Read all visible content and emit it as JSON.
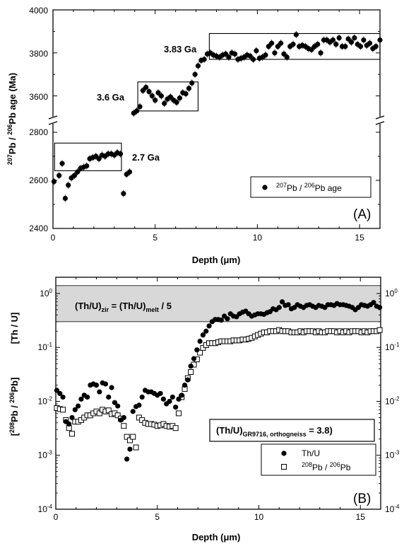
{
  "chart_data": [
    {
      "type": "scatter",
      "panel_label": "(A)",
      "xlabel": "Depth (μm)",
      "ylabel_parts": [
        "207",
        "Pb / ",
        "206",
        "Pb age (Ma)"
      ],
      "xlim": [
        0,
        16
      ],
      "ylim_lower": [
        2400,
        2800
      ],
      "ylim_upper": [
        3500,
        4000
      ],
      "x_ticks": [
        "0",
        "5",
        "10",
        "15"
      ],
      "y_ticks_lower": [
        "2400",
        "2600",
        "2800"
      ],
      "y_ticks_upper": [
        "3600",
        "3800",
        "4000"
      ],
      "axis_break": true,
      "annotations": [
        "3.83 Ga",
        "3.6 Ga",
        "2.7 Ga"
      ],
      "boxes": [
        {
          "x": [
            0.08,
            3.35
          ],
          "y": [
            2640,
            2755
          ]
        },
        {
          "x": [
            4.15,
            7.1
          ],
          "y": [
            3530,
            3665
          ]
        },
        {
          "x": [
            7.65,
            16.0
          ],
          "y": [
            3770,
            3890
          ]
        }
      ],
      "legend": {
        "position": "bottom-right",
        "label_parts": [
          "207",
          "Pb / ",
          "206",
          "Pb age"
        ]
      },
      "series": [
        {
          "marker": "filled-circle",
          "x": [
            0.05,
            0.3,
            0.45,
            0.6,
            0.75,
            0.9,
            1.05,
            1.2,
            1.35,
            1.5,
            1.65,
            1.8,
            1.95,
            2.1,
            2.25,
            2.4,
            2.55,
            2.7,
            2.85,
            3.0,
            3.15,
            3.3,
            3.45,
            3.6,
            3.75,
            3.95,
            4.1,
            4.25,
            4.4,
            4.55,
            4.7,
            4.85,
            5.0,
            5.15,
            5.3,
            5.45,
            5.6,
            5.75,
            5.9,
            6.05,
            6.2,
            6.35,
            6.5,
            6.65,
            6.8,
            6.95,
            7.1,
            7.25,
            7.4,
            7.55,
            7.7,
            7.85,
            8.0,
            8.15,
            8.3,
            8.45,
            8.6,
            8.75,
            8.9,
            9.05,
            9.2,
            9.35,
            9.5,
            9.65,
            9.8,
            9.95,
            10.1,
            10.25,
            10.4,
            10.55,
            10.7,
            10.85,
            11.0,
            11.15,
            11.3,
            11.45,
            11.6,
            11.75,
            11.9,
            12.05,
            12.2,
            12.35,
            12.5,
            12.65,
            12.8,
            12.95,
            13.1,
            13.25,
            13.4,
            13.55,
            13.7,
            13.85,
            14.0,
            14.15,
            14.3,
            14.45,
            14.6,
            14.75,
            14.9,
            15.05,
            15.2,
            15.35,
            15.5,
            15.65,
            15.8,
            16.0
          ],
          "y": [
            2595,
            2620,
            2670,
            2525,
            2580,
            2610,
            2620,
            2635,
            2650,
            2655,
            2660,
            2690,
            2695,
            2700,
            2690,
            2705,
            2700,
            2710,
            2710,
            2705,
            2715,
            2710,
            2545,
            2625,
            2635,
            3520,
            3530,
            3550,
            3625,
            3640,
            3620,
            3600,
            3580,
            3615,
            3600,
            3565,
            3585,
            3595,
            3580,
            3570,
            3590,
            3615,
            3610,
            3635,
            3660,
            3700,
            3740,
            3765,
            3770,
            3795,
            3800,
            3790,
            3785,
            3780,
            3790,
            3795,
            3780,
            3800,
            3795,
            3770,
            3775,
            3780,
            3790,
            3785,
            3770,
            3810,
            3775,
            3780,
            3790,
            3830,
            3845,
            3800,
            3830,
            3845,
            3795,
            3780,
            3830,
            3840,
            3885,
            3830,
            3835,
            3830,
            3820,
            3815,
            3830,
            3840,
            3800,
            3860,
            3860,
            3850,
            3860,
            3840,
            3870,
            3830,
            3830,
            3865,
            3850,
            3870,
            3840,
            3830,
            3860,
            3835,
            3845,
            3820,
            3830,
            3860
          ]
        }
      ]
    },
    {
      "type": "scatter",
      "panel_label": "(B)",
      "xlabel": "Depth (μm)",
      "ylabel_upper": "[Th / U]",
      "ylabel_lower_parts": [
        "[",
        "208",
        "Pb / ",
        "206",
        "Pb]"
      ],
      "xlim": [
        0,
        16
      ],
      "ylim": [
        0.0001,
        2
      ],
      "yscale": "log",
      "x_ticks": [
        "0",
        "5",
        "10",
        "15"
      ],
      "y_ticks": [
        "10",
        "10",
        "10",
        "10",
        "10"
      ],
      "y_tick_exponents": [
        "0",
        "-1",
        "-2",
        "-3",
        "-4"
      ],
      "y_tick_values": [
        1,
        0.1,
        0.01,
        0.001,
        0.0001
      ],
      "shaded_band": {
        "y": [
          0.3,
          1.4
        ],
        "label_parts": [
          "(Th/U)",
          "zir",
          " = (Th/U)",
          "melt",
          " / 5"
        ]
      },
      "annotation_box": {
        "label_parts": [
          "(Th/U)",
          "GR9716, orthogneiss",
          " = 3.8)"
        ]
      },
      "legend": {
        "position": "bottom-right",
        "entries": [
          "Th/U",
          "208Pb / 206Pb"
        ],
        "entry2_parts": [
          "208",
          "Pb / ",
          "206",
          "Pb"
        ]
      },
      "series": [
        {
          "name": "Th/U",
          "marker": "filled-circle",
          "x": [
            0.05,
            0.2,
            0.35,
            0.5,
            0.65,
            0.8,
            0.95,
            1.1,
            1.25,
            1.4,
            1.55,
            1.7,
            1.85,
            2.0,
            2.15,
            2.3,
            2.45,
            2.6,
            2.75,
            2.9,
            3.05,
            3.2,
            3.35,
            3.5,
            3.65,
            3.8,
            3.95,
            4.1,
            4.25,
            4.4,
            4.55,
            4.7,
            4.85,
            5.0,
            5.15,
            5.3,
            5.45,
            5.6,
            5.75,
            5.9,
            6.05,
            6.2,
            6.35,
            6.5,
            6.65,
            6.8,
            6.95,
            7.1,
            7.25,
            7.4,
            7.55,
            7.7,
            7.85,
            8.0,
            8.15,
            8.3,
            8.45,
            8.6,
            8.75,
            8.9,
            9.05,
            9.2,
            9.35,
            9.5,
            9.65,
            9.8,
            9.95,
            10.1,
            10.25,
            10.4,
            10.55,
            10.7,
            10.85,
            11.0,
            11.15,
            11.3,
            11.45,
            11.6,
            11.75,
            11.9,
            12.05,
            12.2,
            12.35,
            12.5,
            12.65,
            12.8,
            12.95,
            13.1,
            13.25,
            13.4,
            13.55,
            13.7,
            13.85,
            14.0,
            14.15,
            14.3,
            14.45,
            14.6,
            14.75,
            14.9,
            15.05,
            15.2,
            15.35,
            15.5,
            15.65,
            15.8,
            15.95
          ],
          "y": [
            0.016,
            0.014,
            0.012,
            0.0042,
            0.0038,
            0.005,
            0.007,
            0.0082,
            0.011,
            0.013,
            0.012,
            0.02,
            0.021,
            0.02,
            0.015,
            0.022,
            0.021,
            0.012,
            0.018,
            0.0095,
            0.0082,
            0.0045,
            0.005,
            0.00085,
            0.0013,
            0.0065,
            0.008,
            0.0085,
            0.012,
            0.016,
            0.015,
            0.015,
            0.014,
            0.013,
            0.014,
            0.011,
            0.009,
            0.01,
            0.012,
            0.0078,
            0.011,
            0.013,
            0.02,
            0.025,
            0.045,
            0.062,
            0.09,
            0.13,
            0.17,
            0.2,
            0.25,
            0.3,
            0.33,
            0.33,
            0.32,
            0.38,
            0.34,
            0.42,
            0.38,
            0.37,
            0.42,
            0.45,
            0.47,
            0.42,
            0.38,
            0.4,
            0.42,
            0.42,
            0.41,
            0.44,
            0.46,
            0.52,
            0.5,
            0.55,
            0.7,
            0.6,
            0.62,
            0.52,
            0.55,
            0.62,
            0.58,
            0.55,
            0.6,
            0.62,
            0.58,
            0.55,
            0.6,
            0.58,
            0.55,
            0.62,
            0.62,
            0.6,
            0.65,
            0.62,
            0.62,
            0.6,
            0.58,
            0.55,
            0.5,
            0.55,
            0.62,
            0.6,
            0.58,
            0.62,
            0.68,
            0.58,
            0.55
          ]
        },
        {
          "name": "208Pb / 206Pb",
          "marker": "open-square",
          "x": [
            0.05,
            0.2,
            0.35,
            0.5,
            0.65,
            0.8,
            0.95,
            1.1,
            1.25,
            1.4,
            1.55,
            1.7,
            1.85,
            2.0,
            2.15,
            2.3,
            2.45,
            2.6,
            2.75,
            2.9,
            3.05,
            3.2,
            3.35,
            3.5,
            3.65,
            3.8,
            3.95,
            4.1,
            4.25,
            4.4,
            4.55,
            4.7,
            4.85,
            5.0,
            5.15,
            5.3,
            5.45,
            5.6,
            5.75,
            5.9,
            6.05,
            6.2,
            6.35,
            6.5,
            6.65,
            6.8,
            6.95,
            7.1,
            7.25,
            7.4,
            7.55,
            7.7,
            7.85,
            8.0,
            8.15,
            8.3,
            8.45,
            8.6,
            8.75,
            8.9,
            9.05,
            9.2,
            9.35,
            9.5,
            9.65,
            9.8,
            9.95,
            10.1,
            10.25,
            10.4,
            10.55,
            10.7,
            10.85,
            11.0,
            11.15,
            11.3,
            11.45,
            11.6,
            11.75,
            11.9,
            12.05,
            12.2,
            12.35,
            12.5,
            12.65,
            12.8,
            12.95,
            13.1,
            13.25,
            13.4,
            13.55,
            13.7,
            13.85,
            14.0,
            14.15,
            14.3,
            14.45,
            14.6,
            14.75,
            14.9,
            15.05,
            15.2,
            15.35,
            15.5,
            15.65,
            15.8,
            15.95
          ],
          "y": [
            0.0075,
            0.0072,
            0.007,
            0.0045,
            0.0032,
            0.0025,
            0.0042,
            0.0042,
            0.0045,
            0.005,
            0.0055,
            0.0055,
            0.006,
            0.0065,
            0.006,
            0.007,
            0.0065,
            0.0068,
            0.0058,
            0.006,
            0.0055,
            0.0048,
            0.0035,
            0.0022,
            0.0019,
            0.0022,
            0.0014,
            0.005,
            0.0045,
            0.004,
            0.0038,
            0.0038,
            0.0037,
            0.0035,
            0.0036,
            0.0038,
            0.0035,
            0.0034,
            0.0035,
            0.0032,
            0.006,
            0.012,
            0.017,
            0.027,
            0.035,
            0.048,
            0.06,
            0.08,
            0.098,
            0.11,
            0.12,
            0.12,
            0.12,
            0.125,
            0.13,
            0.13,
            0.13,
            0.13,
            0.135,
            0.135,
            0.135,
            0.14,
            0.14,
            0.145,
            0.15,
            0.16,
            0.17,
            0.18,
            0.19,
            0.19,
            0.2,
            0.2,
            0.2,
            0.21,
            0.2,
            0.2,
            0.2,
            0.19,
            0.19,
            0.19,
            0.2,
            0.19,
            0.2,
            0.2,
            0.2,
            0.19,
            0.2,
            0.19,
            0.19,
            0.2,
            0.2,
            0.2,
            0.19,
            0.2,
            0.19,
            0.2,
            0.19,
            0.2,
            0.2,
            0.2,
            0.19,
            0.2,
            0.19,
            0.2,
            0.2,
            0.2,
            0.21
          ]
        }
      ]
    }
  ]
}
